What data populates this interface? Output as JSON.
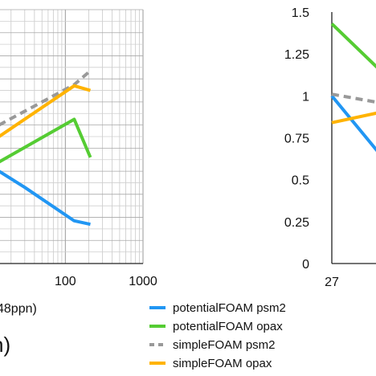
{
  "chart_data": [
    {
      "type": "line",
      "x_scale": "log",
      "xlim": [
        1,
        1000
      ],
      "x_ticks": [
        "100",
        "1000"
      ],
      "x_tick_values": [
        100,
        1000
      ],
      "xlabel_fragment": "48ppn)",
      "panel_label_fragment": "h)",
      "grid": true,
      "series": [
        {
          "name": "potentialFOAM psm2",
          "color": "#2196F3",
          "style": "solid",
          "points": [
            [
              14,
              0.8
            ],
            [
              30,
              0.66
            ],
            [
              130,
              0.37
            ],
            [
              210,
              0.34
            ]
          ]
        },
        {
          "name": "potentialFOAM opax",
          "color": "#55CC33",
          "style": "solid",
          "points": [
            [
              14,
              0.88
            ],
            [
              130,
              1.25
            ],
            [
              210,
              0.92
            ]
          ]
        },
        {
          "name": "simpleFOAM psm2",
          "color": "#999999",
          "style": "dashed",
          "points": [
            [
              14,
              1.2
            ],
            [
              130,
              1.55
            ],
            [
              210,
              1.67
            ]
          ]
        },
        {
          "name": "simpleFOAM opax",
          "color": "#FFB300",
          "style": "solid",
          "points": [
            [
              14,
              1.1
            ],
            [
              130,
              1.54
            ],
            [
              210,
              1.5
            ]
          ]
        }
      ]
    },
    {
      "type": "line",
      "ylim": [
        0,
        1.5
      ],
      "y_ticks": [
        "0",
        "0.25",
        "0.5",
        "0.75",
        "1",
        "1.25",
        "1.5"
      ],
      "y_tick_values": [
        0,
        0.25,
        0.5,
        0.75,
        1,
        1.25,
        1.5
      ],
      "x_ticks": [
        "27"
      ],
      "grid": false,
      "series": [
        {
          "name": "potentialFOAM psm2",
          "color": "#2196F3",
          "style": "solid",
          "points": [
            [
              27,
              1.0
            ],
            [
              28.3,
              0.66
            ]
          ]
        },
        {
          "name": "potentialFOAM opax",
          "color": "#55CC33",
          "style": "solid",
          "points": [
            [
              27,
              1.43
            ],
            [
              28.3,
              1.16
            ]
          ]
        },
        {
          "name": "simpleFOAM psm2",
          "color": "#999999",
          "style": "dashed",
          "points": [
            [
              27,
              1.01
            ],
            [
              28.3,
              0.96
            ]
          ]
        },
        {
          "name": "simpleFOAM opax",
          "color": "#FFB300",
          "style": "solid",
          "points": [
            [
              27,
              0.84
            ],
            [
              28.3,
              0.9
            ]
          ]
        }
      ]
    }
  ],
  "legend": {
    "placement": "bottom-center",
    "entries": [
      {
        "label": "potentialFOAM psm2",
        "color": "#2196F3",
        "style": "solid"
      },
      {
        "label": "potentialFOAM opax",
        "color": "#55CC33",
        "style": "solid"
      },
      {
        "label": "simpleFOAM psm2",
        "color": "#999999",
        "style": "dashed"
      },
      {
        "label": "simpleFOAM opax",
        "color": "#FFB300",
        "style": "solid"
      }
    ]
  }
}
